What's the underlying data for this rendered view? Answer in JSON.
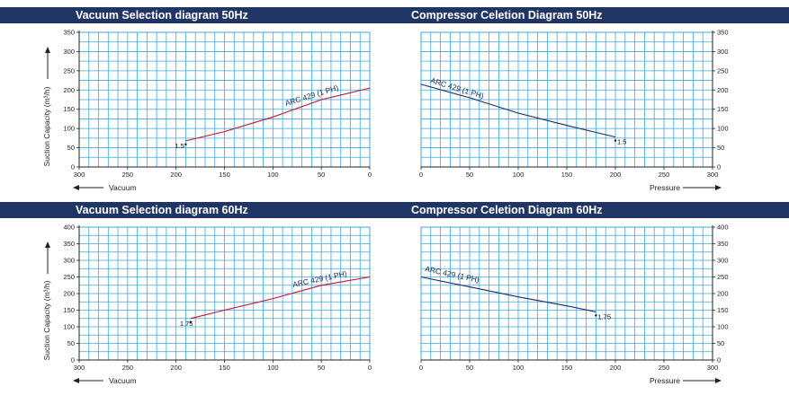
{
  "colors": {
    "band": "#1f3566",
    "grid": "#39a9d6",
    "vacuum_curve": "#c8102e",
    "compressor_curve": "#1a2a6c",
    "accent_stripe": "#f4a460"
  },
  "panels": [
    {
      "titles": [
        "Vacuum Selection diagram 50Hz",
        "Compressor Celetion Diagram 50Hz"
      ],
      "ylabel": "Suction Capacity (m³/h)",
      "chart_data": [
        {
          "type": "line",
          "title": "Vacuum Selection diagram 50Hz",
          "xlabel": "Vacuum",
          "ylabel": "Suction Capacity (m³/h)",
          "xlim": [
            300,
            0
          ],
          "ylim": [
            0,
            350
          ],
          "x_ticks": [
            300,
            250,
            200,
            150,
            100,
            50,
            0
          ],
          "y_ticks": [
            0,
            50,
            100,
            150,
            200,
            250,
            300,
            350
          ],
          "grid": true,
          "series": [
            {
              "name": "ARC 429 (1 PH)",
              "x": [
                190,
                150,
                100,
                50,
                0
              ],
              "y": [
                68,
                92,
                130,
                175,
                205
              ]
            }
          ],
          "point_label": "1.5"
        },
        {
          "type": "line",
          "title": "Compressor Celetion Diagram 50Hz",
          "xlabel": "Pressure",
          "ylabel": "",
          "xlim": [
            0,
            300
          ],
          "ylim": [
            0,
            350
          ],
          "x_ticks": [
            0,
            50,
            100,
            150,
            200,
            250,
            300
          ],
          "y_ticks": [
            0,
            50,
            100,
            150,
            200,
            250,
            300,
            350
          ],
          "grid": true,
          "series": [
            {
              "name": "ARC 429 (1 PH)",
              "x": [
                0,
                50,
                100,
                150,
                200
              ],
              "y": [
                215,
                180,
                140,
                108,
                78
              ]
            }
          ],
          "point_label": "1.5"
        }
      ]
    },
    {
      "titles": [
        "Vacuum Selection diagram 60Hz",
        "Compressor Celetion Diagram 60Hz"
      ],
      "ylabel": "Suction Capacity (m³/h)",
      "chart_data": [
        {
          "type": "line",
          "title": "Vacuum Selection diagram 60Hz",
          "xlabel": "Vacuum",
          "ylabel": "Suction Capacity (m³/h)",
          "xlim": [
            300,
            0
          ],
          "ylim": [
            0,
            400
          ],
          "x_ticks": [
            300,
            250,
            200,
            150,
            100,
            50,
            0
          ],
          "y_ticks": [
            0,
            50,
            100,
            150,
            200,
            250,
            300,
            350,
            400
          ],
          "grid": true,
          "series": [
            {
              "name": "ARC 429 (1 PH)",
              "x": [
                185,
                150,
                100,
                50,
                0
              ],
              "y": [
                125,
                150,
                185,
                225,
                250
              ]
            }
          ],
          "point_label": "1.75"
        },
        {
          "type": "line",
          "title": "Compressor Celetion Diagram 60Hz",
          "xlabel": "Pressure",
          "ylabel": "",
          "xlim": [
            0,
            300
          ],
          "ylim": [
            0,
            400
          ],
          "x_ticks": [
            0,
            50,
            100,
            150,
            200,
            250,
            300
          ],
          "y_ticks": [
            0,
            50,
            100,
            150,
            200,
            250,
            300,
            350,
            400
          ],
          "grid": true,
          "series": [
            {
              "name": "ARC 429 (1 PH)",
              "x": [
                0,
                50,
                100,
                150,
                180
              ],
              "y": [
                250,
                220,
                190,
                163,
                145
              ]
            }
          ],
          "point_label": "1.75"
        }
      ]
    }
  ]
}
